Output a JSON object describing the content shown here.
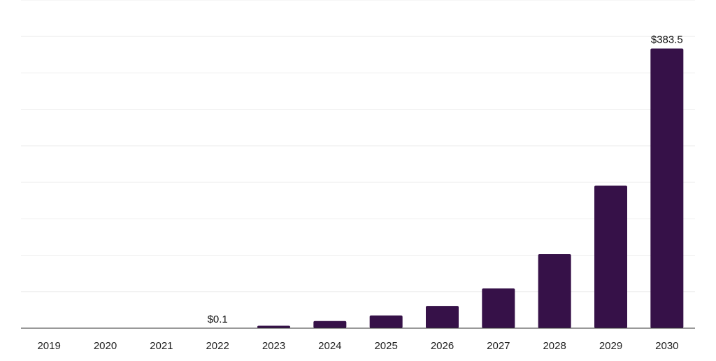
{
  "chart_data": {
    "type": "bar",
    "categories": [
      "2019",
      "2020",
      "2021",
      "2022",
      "2023",
      "2024",
      "2025",
      "2026",
      "2027",
      "2028",
      "2029",
      "2030"
    ],
    "values": [
      0,
      0,
      0,
      0.1,
      3.3,
      9.8,
      17.5,
      30.5,
      54.5,
      101.5,
      195.5,
      383.5
    ],
    "data_labels": [
      {
        "category": "2022",
        "text": "$0.1"
      },
      {
        "category": "2030",
        "text": "$383.5"
      }
    ],
    "title": "",
    "xlabel": "",
    "ylabel": "",
    "ylim": [
      0,
      450
    ],
    "grid": true,
    "legend": "none",
    "colors": {
      "bar": "#361148",
      "grid": "#eeeeee",
      "axis": "#333333",
      "text": "#222222"
    }
  }
}
